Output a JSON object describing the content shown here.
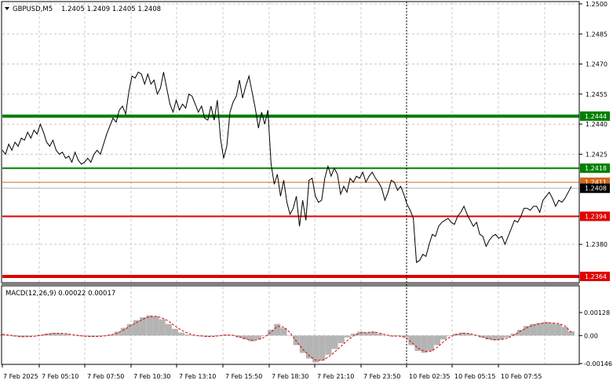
{
  "header": {
    "symbol": "GBPUSD,M5",
    "ohlc": "1.2405 1.2409 1.2405 1.2408"
  },
  "macd": {
    "label": "MACD(12,26,9) 0.00022 0.00017"
  },
  "colors": {
    "price_line": "#000000",
    "grid": "#c8c8c8",
    "level_green": "#008000",
    "level_red": "#e00000",
    "level_orange": "#d2691e",
    "macd_hist": "#b4b4b4",
    "macd_signal": "#e00000"
  },
  "chart_data": [
    {
      "type": "line",
      "title": "GBPUSD,M5",
      "ylim": [
        1.2364,
        1.25
      ],
      "y_ticks": [
        "1.2500",
        "1.2485",
        "1.2470",
        "1.2455",
        "1.2440",
        "1.2425",
        "1.2380"
      ],
      "x_ticks": [
        "7 Feb 2025",
        "7 Feb 05:10",
        "7 Feb 07:50",
        "7 Feb 10:30",
        "7 Feb 13:10",
        "7 Feb 15:50",
        "7 Feb 18:30",
        "7 Feb 21:10",
        "7 Feb 23:50",
        "10 Feb 02:35",
        "10 Feb 05:15",
        "10 Feb 07:55"
      ],
      "levels": [
        {
          "value": 1.2444,
          "label": "1.2444",
          "color": "#008000",
          "style": "thick"
        },
        {
          "value": 1.2418,
          "label": "1.2418",
          "color": "#008000",
          "style": "normal"
        },
        {
          "value": 1.2411,
          "label": "1.2411",
          "color": "#d2691e",
          "style": "thin"
        },
        {
          "value": 1.2394,
          "label": "1.2394",
          "color": "#e00000",
          "style": "normal"
        },
        {
          "value": 1.2364,
          "label": "1.2364",
          "color": "#e00000",
          "style": "thick"
        }
      ],
      "current_price": "1.2408",
      "series": [
        {
          "values": [
            1.2427,
            1.2425,
            1.243,
            1.2427,
            1.2431,
            1.2429,
            1.2433,
            1.2432,
            1.2436,
            1.2433,
            1.2437,
            1.2435,
            1.244,
            1.2436,
            1.2431,
            1.2429,
            1.2432,
            1.2427,
            1.2425,
            1.2426,
            1.2423,
            1.2424,
            1.2421,
            1.2426,
            1.2422,
            1.242,
            1.2421,
            1.2423,
            1.2421,
            1.2425,
            1.2427,
            1.2425,
            1.243,
            1.2435,
            1.2439,
            1.2443,
            1.2441,
            1.2447,
            1.2449,
            1.2445,
            1.2456,
            1.2464,
            1.2463,
            1.2466,
            1.2465,
            1.246,
            1.2465,
            1.246,
            1.2462,
            1.2455,
            1.2458,
            1.2466,
            1.2458,
            1.245,
            1.2446,
            1.2452,
            1.2447,
            1.245,
            1.2448,
            1.2455,
            1.2454,
            1.245,
            1.2446,
            1.2449,
            1.2443,
            1.2442,
            1.2449,
            1.2442,
            1.2452,
            1.2433,
            1.2423,
            1.2429,
            1.2446,
            1.2451,
            1.2454,
            1.2462,
            1.2453,
            1.2459,
            1.2464,
            1.2456,
            1.2448,
            1.2438,
            1.2446,
            1.244,
            1.2447,
            1.242,
            1.241,
            1.2415,
            1.2404,
            1.2412,
            1.2401,
            1.2395,
            1.2398,
            1.2404,
            1.2389,
            1.2402,
            1.2392,
            1.2412,
            1.2413,
            1.2404,
            1.2401,
            1.2402,
            1.2413,
            1.2419,
            1.2414,
            1.2418,
            1.2415,
            1.2405,
            1.2409,
            1.2406,
            1.2413,
            1.2411,
            1.2414,
            1.2413,
            1.2416,
            1.2411,
            1.2414,
            1.2416,
            1.2413,
            1.2411,
            1.2408,
            1.2402,
            1.2406,
            1.2412,
            1.2411,
            1.2407,
            1.2409,
            1.2405,
            1.24,
            1.2397,
            1.2393,
            1.2371,
            1.2372,
            1.2375,
            1.2374,
            1.238,
            1.2385,
            1.2384,
            1.2389,
            1.2391,
            1.2392,
            1.2393,
            1.2391,
            1.239,
            1.2394,
            1.2396,
            1.2399,
            1.2395,
            1.2392,
            1.2389,
            1.2391,
            1.2385,
            1.2384,
            1.2379,
            1.2382,
            1.2384,
            1.2385,
            1.2383,
            1.2384,
            1.238,
            1.2384,
            1.2388,
            1.2392,
            1.2391,
            1.2394,
            1.2398,
            1.2398,
            1.2397,
            1.2399,
            1.2399,
            1.2396,
            1.2402,
            1.2404,
            1.2406,
            1.2403,
            1.2399,
            1.2402,
            1.2401,
            1.2403,
            1.2406,
            1.2409
          ]
        }
      ]
    },
    {
      "type": "bar",
      "title": "MACD(12,26,9)",
      "ylim": [
        -0.00146,
        0.00128
      ],
      "y_ticks": [
        "0.00128",
        "0.00",
        "-0.00146"
      ],
      "series": [
        {
          "name": "MACD",
          "type": "bar",
          "values": [
            5e-05,
            0.0,
            -5e-05,
            -8e-05,
            -6e-05,
            -2e-05,
            4e-05,
            0.0001,
            0.00014,
            0.00012,
            8e-05,
            2e-05,
            -3e-05,
            -5e-05,
            -6e-05,
            -4e-05,
            0.0,
            6e-05,
            0.0002,
            0.0004,
            0.0006,
            0.0008,
            0.00095,
            0.00105,
            0.001,
            0.00085,
            0.0006,
            0.00035,
            0.00015,
            5e-05,
            0.0,
            -4e-05,
            -6e-05,
            -4e-05,
            2e-05,
            5e-05,
            0.0,
            -0.0001,
            -0.0002,
            -0.0003,
            -0.0002,
            0.0,
            0.0003,
            0.0006,
            0.0004,
            0.0,
            -0.0005,
            -0.0009,
            -0.0012,
            -0.0014,
            -0.0013,
            -0.001,
            -0.0007,
            -0.0004,
            -0.0001,
            0.0001,
            0.0002,
            0.00015,
            0.0002,
            0.0001,
            0.0,
            -5e-05,
            -3e-05,
            -0.0001,
            -0.0005,
            -0.0008,
            -0.0009,
            -0.0008,
            -0.0005,
            -0.0002,
            0.0,
            0.0001,
            0.00015,
            0.0001,
            0.0,
            -0.0001,
            -0.0002,
            -0.00025,
            -0.0002,
            -0.0001,
            0.0001,
            0.0003,
            0.0005,
            0.0006,
            0.00065,
            0.0007,
            0.00065,
            0.0006,
            0.00045,
            0.00022
          ]
        },
        {
          "name": "Signal",
          "type": "line",
          "values": [
            7e-05,
            3e-05,
            -2e-05,
            -6e-05,
            -6e-05,
            -4e-05,
            1e-05,
            7e-05,
            0.00011,
            0.00012,
            0.0001,
            5e-05,
            0.0,
            -4e-05,
            -5e-05,
            -5e-05,
            -2e-05,
            3e-05,
            0.00013,
            0.0003,
            0.0005,
            0.00068,
            0.00085,
            0.00098,
            0.001,
            0.00092,
            0.00075,
            0.0005,
            0.00028,
            0.00012,
            3e-05,
            -2e-05,
            -5e-05,
            -5e-05,
            -1e-05,
            3e-05,
            2e-05,
            -6e-05,
            -0.00016,
            -0.00025,
            -0.00022,
            -8e-05,
            0.00018,
            0.00048,
            0.00045,
            0.00015,
            -0.0003,
            -0.00072,
            -0.00105,
            -0.00128,
            -0.0013,
            -0.00112,
            -0.00085,
            -0.00055,
            -0.00025,
            0.0,
            0.00014,
            0.00016,
            0.00018,
            0.00013,
            4e-05,
            -3e-05,
            -3e-05,
            -8e-05,
            -0.00035,
            -0.00065,
            -0.00082,
            -0.00082,
            -0.00062,
            -0.00032,
            -8e-05,
            6e-05,
            0.00012,
            0.00011,
            3e-05,
            -7e-05,
            -0.00016,
            -0.00022,
            -0.00021,
            -0.00014,
            2e-05,
            0.00022,
            0.0004,
            0.00053,
            0.00061,
            0.00067,
            0.00066,
            0.00062,
            0.0005,
            0.00017
          ]
        }
      ]
    }
  ]
}
